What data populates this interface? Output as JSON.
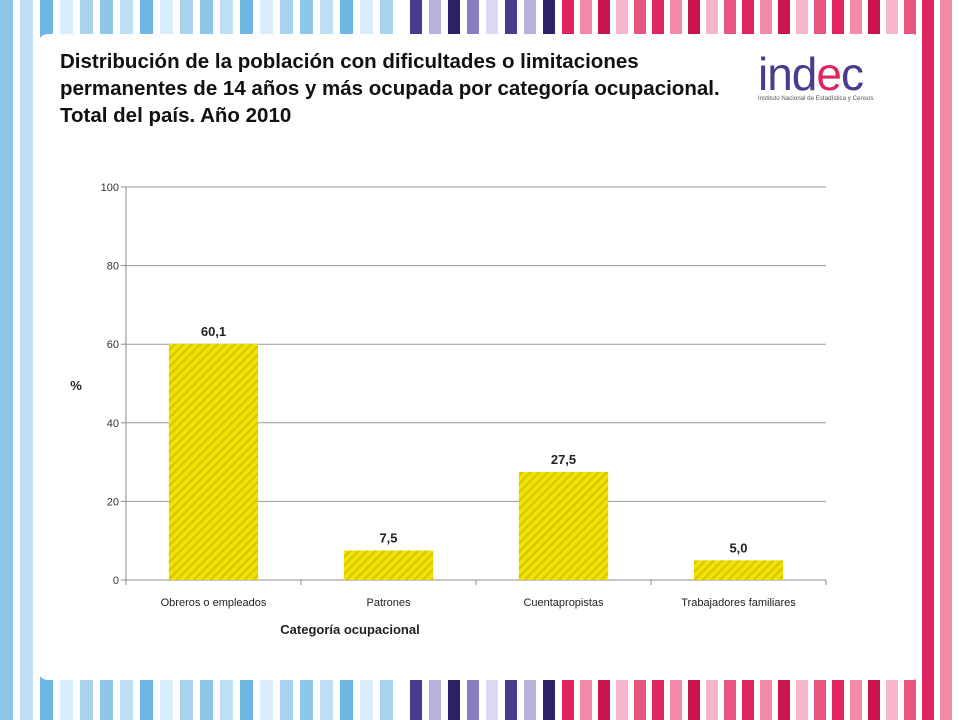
{
  "title": "Distribución de la población con dificultades o limitaciones permanentes de 14 años y más ocupada por categoría ocupacional. Total del país. Año 2010",
  "logo": {
    "word_prefix": "ind",
    "word_accent": "e",
    "word_suffix": "c",
    "subtitle": "Instituto Nacional de Estadística y Censos"
  },
  "colors": {
    "bar": "#f2e200",
    "bar_stripe": "#d8c400",
    "grid": "#9a9a9a",
    "axis": "#8c8c8c"
  },
  "chart_data": {
    "type": "bar",
    "categories": [
      "Obreros o empleados",
      "Patrones",
      "Cuentapropistas",
      "Trabajadores familiares"
    ],
    "values": [
      60.1,
      7.5,
      27.5,
      5.0
    ],
    "value_labels": [
      "60,1",
      "7,5",
      "27,5",
      "5,0"
    ],
    "title": "Distribución de la población con dificultades o limitaciones permanentes de 14 años y más ocupada por categoría ocupacional. Total del país. Año 2010",
    "xlabel": "Categoría ocupacional",
    "ylabel": "%",
    "ylim": [
      0,
      100
    ],
    "yticks": [
      0,
      20,
      40,
      60,
      80,
      100
    ],
    "grid": true,
    "legend": "none"
  }
}
